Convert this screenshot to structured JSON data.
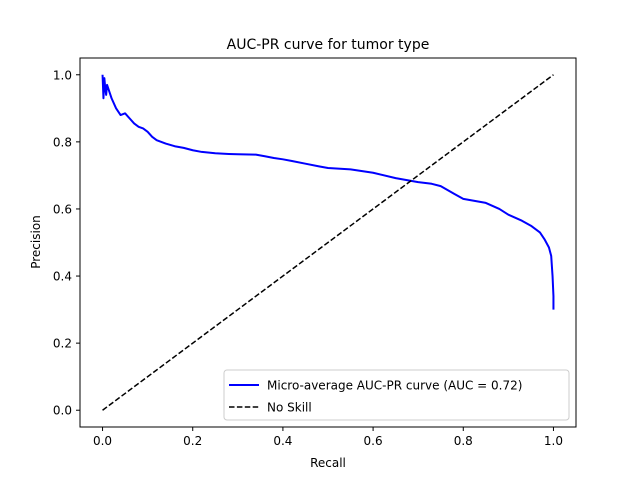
{
  "chart_data": {
    "type": "line",
    "title": "AUC-PR curve for tumor type",
    "xlabel": "Recall",
    "ylabel": "Precision",
    "xlim": [
      -0.05,
      1.05
    ],
    "ylim": [
      -0.05,
      1.05
    ],
    "xticks": [
      0.0,
      0.2,
      0.4,
      0.6,
      0.8,
      1.0
    ],
    "yticks": [
      0.0,
      0.2,
      0.4,
      0.6,
      0.8,
      1.0
    ],
    "tick_labels": [
      "0.0",
      "0.2",
      "0.4",
      "0.6",
      "0.8",
      "1.0"
    ],
    "grid": false,
    "legend_position": "lower right",
    "series": [
      {
        "name": "Micro-average AUC-PR curve (AUC = 0.72)",
        "color": "#0000ff",
        "style": "solid",
        "x": [
          0.0,
          0.002,
          0.004,
          0.006,
          0.008,
          0.01,
          0.015,
          0.02,
          0.03,
          0.04,
          0.05,
          0.06,
          0.07,
          0.08,
          0.09,
          0.1,
          0.11,
          0.12,
          0.14,
          0.16,
          0.18,
          0.2,
          0.22,
          0.25,
          0.28,
          0.3,
          0.34,
          0.36,
          0.38,
          0.4,
          0.42,
          0.45,
          0.48,
          0.5,
          0.55,
          0.6,
          0.65,
          0.7,
          0.73,
          0.75,
          0.78,
          0.8,
          0.85,
          0.88,
          0.9,
          0.93,
          0.95,
          0.97,
          0.98,
          0.99,
          0.995,
          0.998,
          1.0,
          1.0
        ],
        "y": [
          1.0,
          0.93,
          0.99,
          0.96,
          0.94,
          0.97,
          0.95,
          0.93,
          0.9,
          0.88,
          0.885,
          0.87,
          0.855,
          0.845,
          0.84,
          0.83,
          0.815,
          0.805,
          0.795,
          0.787,
          0.782,
          0.775,
          0.77,
          0.766,
          0.764,
          0.763,
          0.762,
          0.757,
          0.752,
          0.748,
          0.743,
          0.735,
          0.727,
          0.722,
          0.718,
          0.708,
          0.692,
          0.68,
          0.675,
          0.668,
          0.645,
          0.63,
          0.618,
          0.6,
          0.583,
          0.565,
          0.55,
          0.53,
          0.51,
          0.485,
          0.46,
          0.4,
          0.34,
          0.3
        ]
      },
      {
        "name": "No Skill",
        "color": "#000000",
        "style": "dashed",
        "x": [
          0.0,
          1.0
        ],
        "y": [
          0.0,
          1.0
        ]
      }
    ]
  }
}
